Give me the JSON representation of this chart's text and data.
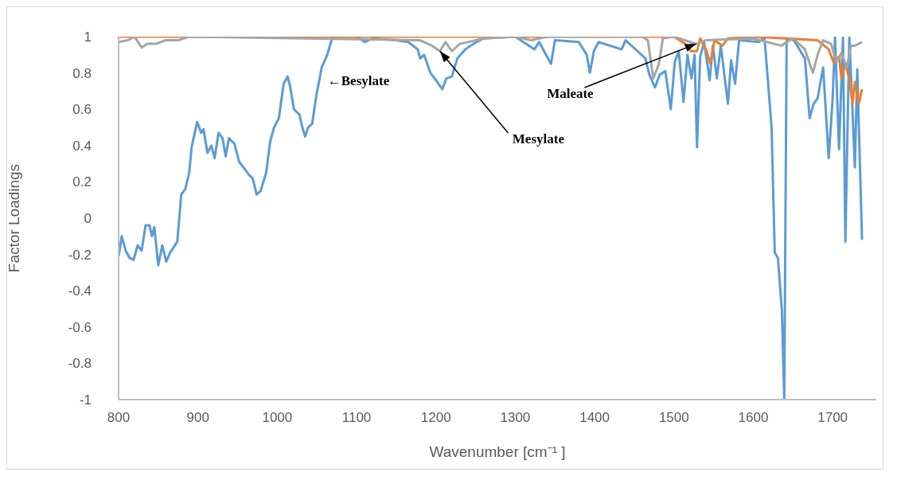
{
  "chart_data": {
    "type": "line",
    "xlabel": "Wavenumber [cm⁻¹ ]",
    "ylabel": "Factor Loadings",
    "xlim": [
      800,
      1755
    ],
    "xticks": [
      800,
      900,
      1000,
      1100,
      1200,
      1300,
      1400,
      1500,
      1600,
      1700
    ],
    "ylim": [
      -1,
      1
    ],
    "yticks": [
      -1,
      -0.8,
      -0.6,
      -0.4,
      -0.2,
      0,
      0.2,
      0.4,
      0.6,
      0.8,
      1
    ],
    "grid": false,
    "marker": "none",
    "line_style": "solid",
    "series": [
      {
        "color": "#5b9bd5",
        "x": [
          800,
          804,
          809,
          814,
          819,
          824,
          829,
          834,
          839,
          842,
          845,
          850,
          855,
          860,
          865,
          874,
          879,
          884,
          889,
          892,
          899,
          904,
          907,
          912,
          917,
          921,
          926,
          931,
          935,
          939,
          946,
          952,
          959,
          964,
          969,
          974,
          979,
          986,
          991,
          996,
          1002,
          1008,
          1013,
          1016,
          1021,
          1028,
          1031,
          1035,
          1039,
          1044,
          1049,
          1056,
          1063,
          1069,
          1075,
          1100,
          1110,
          1120,
          1150,
          1165,
          1177,
          1180,
          1185,
          1193,
          1200,
          1208,
          1213,
          1220,
          1227,
          1237,
          1247,
          1260,
          1300,
          1324,
          1330,
          1345,
          1350,
          1380,
          1390,
          1394,
          1399,
          1405,
          1434,
          1439,
          1454,
          1464,
          1469,
          1476,
          1482,
          1489,
          1496,
          1501,
          1506,
          1512,
          1517,
          1522,
          1526,
          1529,
          1533,
          1538,
          1545,
          1549,
          1554,
          1559,
          1568,
          1572,
          1577,
          1582,
          1607,
          1614,
          1623,
          1627,
          1631,
          1636,
          1639,
          1642,
          1651,
          1665,
          1671,
          1676,
          1681,
          1688,
          1695,
          1700,
          1703,
          1708,
          1713,
          1716,
          1721,
          1728,
          1731,
          1737
        ],
        "values": [
          -0.21,
          -0.1,
          -0.18,
          -0.22,
          -0.23,
          -0.15,
          -0.18,
          -0.04,
          -0.04,
          -0.1,
          -0.05,
          -0.26,
          -0.15,
          -0.24,
          -0.19,
          -0.13,
          0.13,
          0.16,
          0.25,
          0.39,
          0.53,
          0.47,
          0.49,
          0.36,
          0.4,
          0.33,
          0.47,
          0.44,
          0.34,
          0.44,
          0.41,
          0.31,
          0.27,
          0.24,
          0.22,
          0.13,
          0.15,
          0.25,
          0.42,
          0.5,
          0.55,
          0.74,
          0.78,
          0.73,
          0.6,
          0.57,
          0.51,
          0.45,
          0.5,
          0.52,
          0.67,
          0.83,
          0.9,
          0.99,
          1,
          1,
          0.97,
          0.99,
          0.98,
          0.97,
          0.93,
          0.88,
          0.9,
          0.8,
          0.76,
          0.71,
          0.77,
          0.78,
          0.88,
          0.93,
          0.96,
          0.99,
          1,
          0.93,
          0.97,
          0.85,
          0.98,
          0.97,
          0.9,
          0.8,
          0.92,
          0.97,
          0.93,
          0.98,
          0.92,
          0.88,
          0.79,
          0.72,
          0.79,
          0.81,
          0.6,
          0.86,
          0.92,
          0.64,
          0.9,
          0.77,
          0.9,
          0.39,
          0.89,
          0.97,
          0.76,
          0.95,
          0.77,
          0.95,
          0.63,
          0.87,
          0.74,
          0.98,
          0.97,
          1,
          0.5,
          -0.19,
          -0.22,
          -0.51,
          -1,
          0.99,
          0.98,
          0.88,
          0.55,
          0.63,
          0.66,
          0.83,
          0.33,
          0.66,
          1,
          0.38,
          1,
          -0.13,
          1,
          0.28,
          0.82,
          -0.12
        ]
      },
      {
        "color": "#ed7d31",
        "x": [
          800,
          1500,
          1514,
          1521,
          1529,
          1533,
          1541,
          1546,
          1551,
          1561,
          1568,
          1600,
          1681,
          1695,
          1701,
          1708,
          1711,
          1716,
          1721,
          1725,
          1728,
          1733,
          1737
        ],
        "values": [
          1,
          1,
          0.96,
          0.92,
          0.92,
          0.99,
          0.92,
          0.85,
          0.98,
          0.95,
          0.99,
          1,
          0.98,
          0.93,
          0.86,
          0.89,
          0.77,
          0.85,
          0.77,
          0.63,
          0.75,
          0.63,
          0.71
        ]
      },
      {
        "color": "#a5a5a5",
        "x": [
          800,
          812,
          820,
          829,
          836,
          847,
          859,
          875,
          889,
          1180,
          1195,
          1205,
          1212,
          1220,
          1230,
          1240,
          1260,
          1300,
          1320,
          1340,
          1460,
          1467,
          1474,
          1481,
          1486,
          1500,
          1528,
          1540,
          1600,
          1635,
          1650,
          1665,
          1675,
          1681,
          1688,
          1698,
          1705,
          1711,
          1718,
          1723,
          1728,
          1737
        ],
        "values": [
          0.97,
          0.98,
          1,
          0.94,
          0.96,
          0.96,
          0.98,
          0.98,
          1,
          0.98,
          0.95,
          0.92,
          0.97,
          0.92,
          0.96,
          0.97,
          0.99,
          1,
          0.98,
          1,
          1,
          0.98,
          0.77,
          0.85,
          0.99,
          1,
          0.96,
          0.98,
          0.99,
          0.95,
          0.99,
          0.93,
          0.8,
          0.9,
          0.98,
          0.96,
          0.86,
          0.91,
          0.83,
          0.95,
          0.95,
          0.97
        ]
      }
    ],
    "annotations": [
      "←Besylate",
      {
        "text": "Mesylate",
        "x": 1205,
        "y": 0.92
      },
      {
        "text": "Maleate",
        "x": 1528,
        "y": 0.96
      }
    ]
  }
}
